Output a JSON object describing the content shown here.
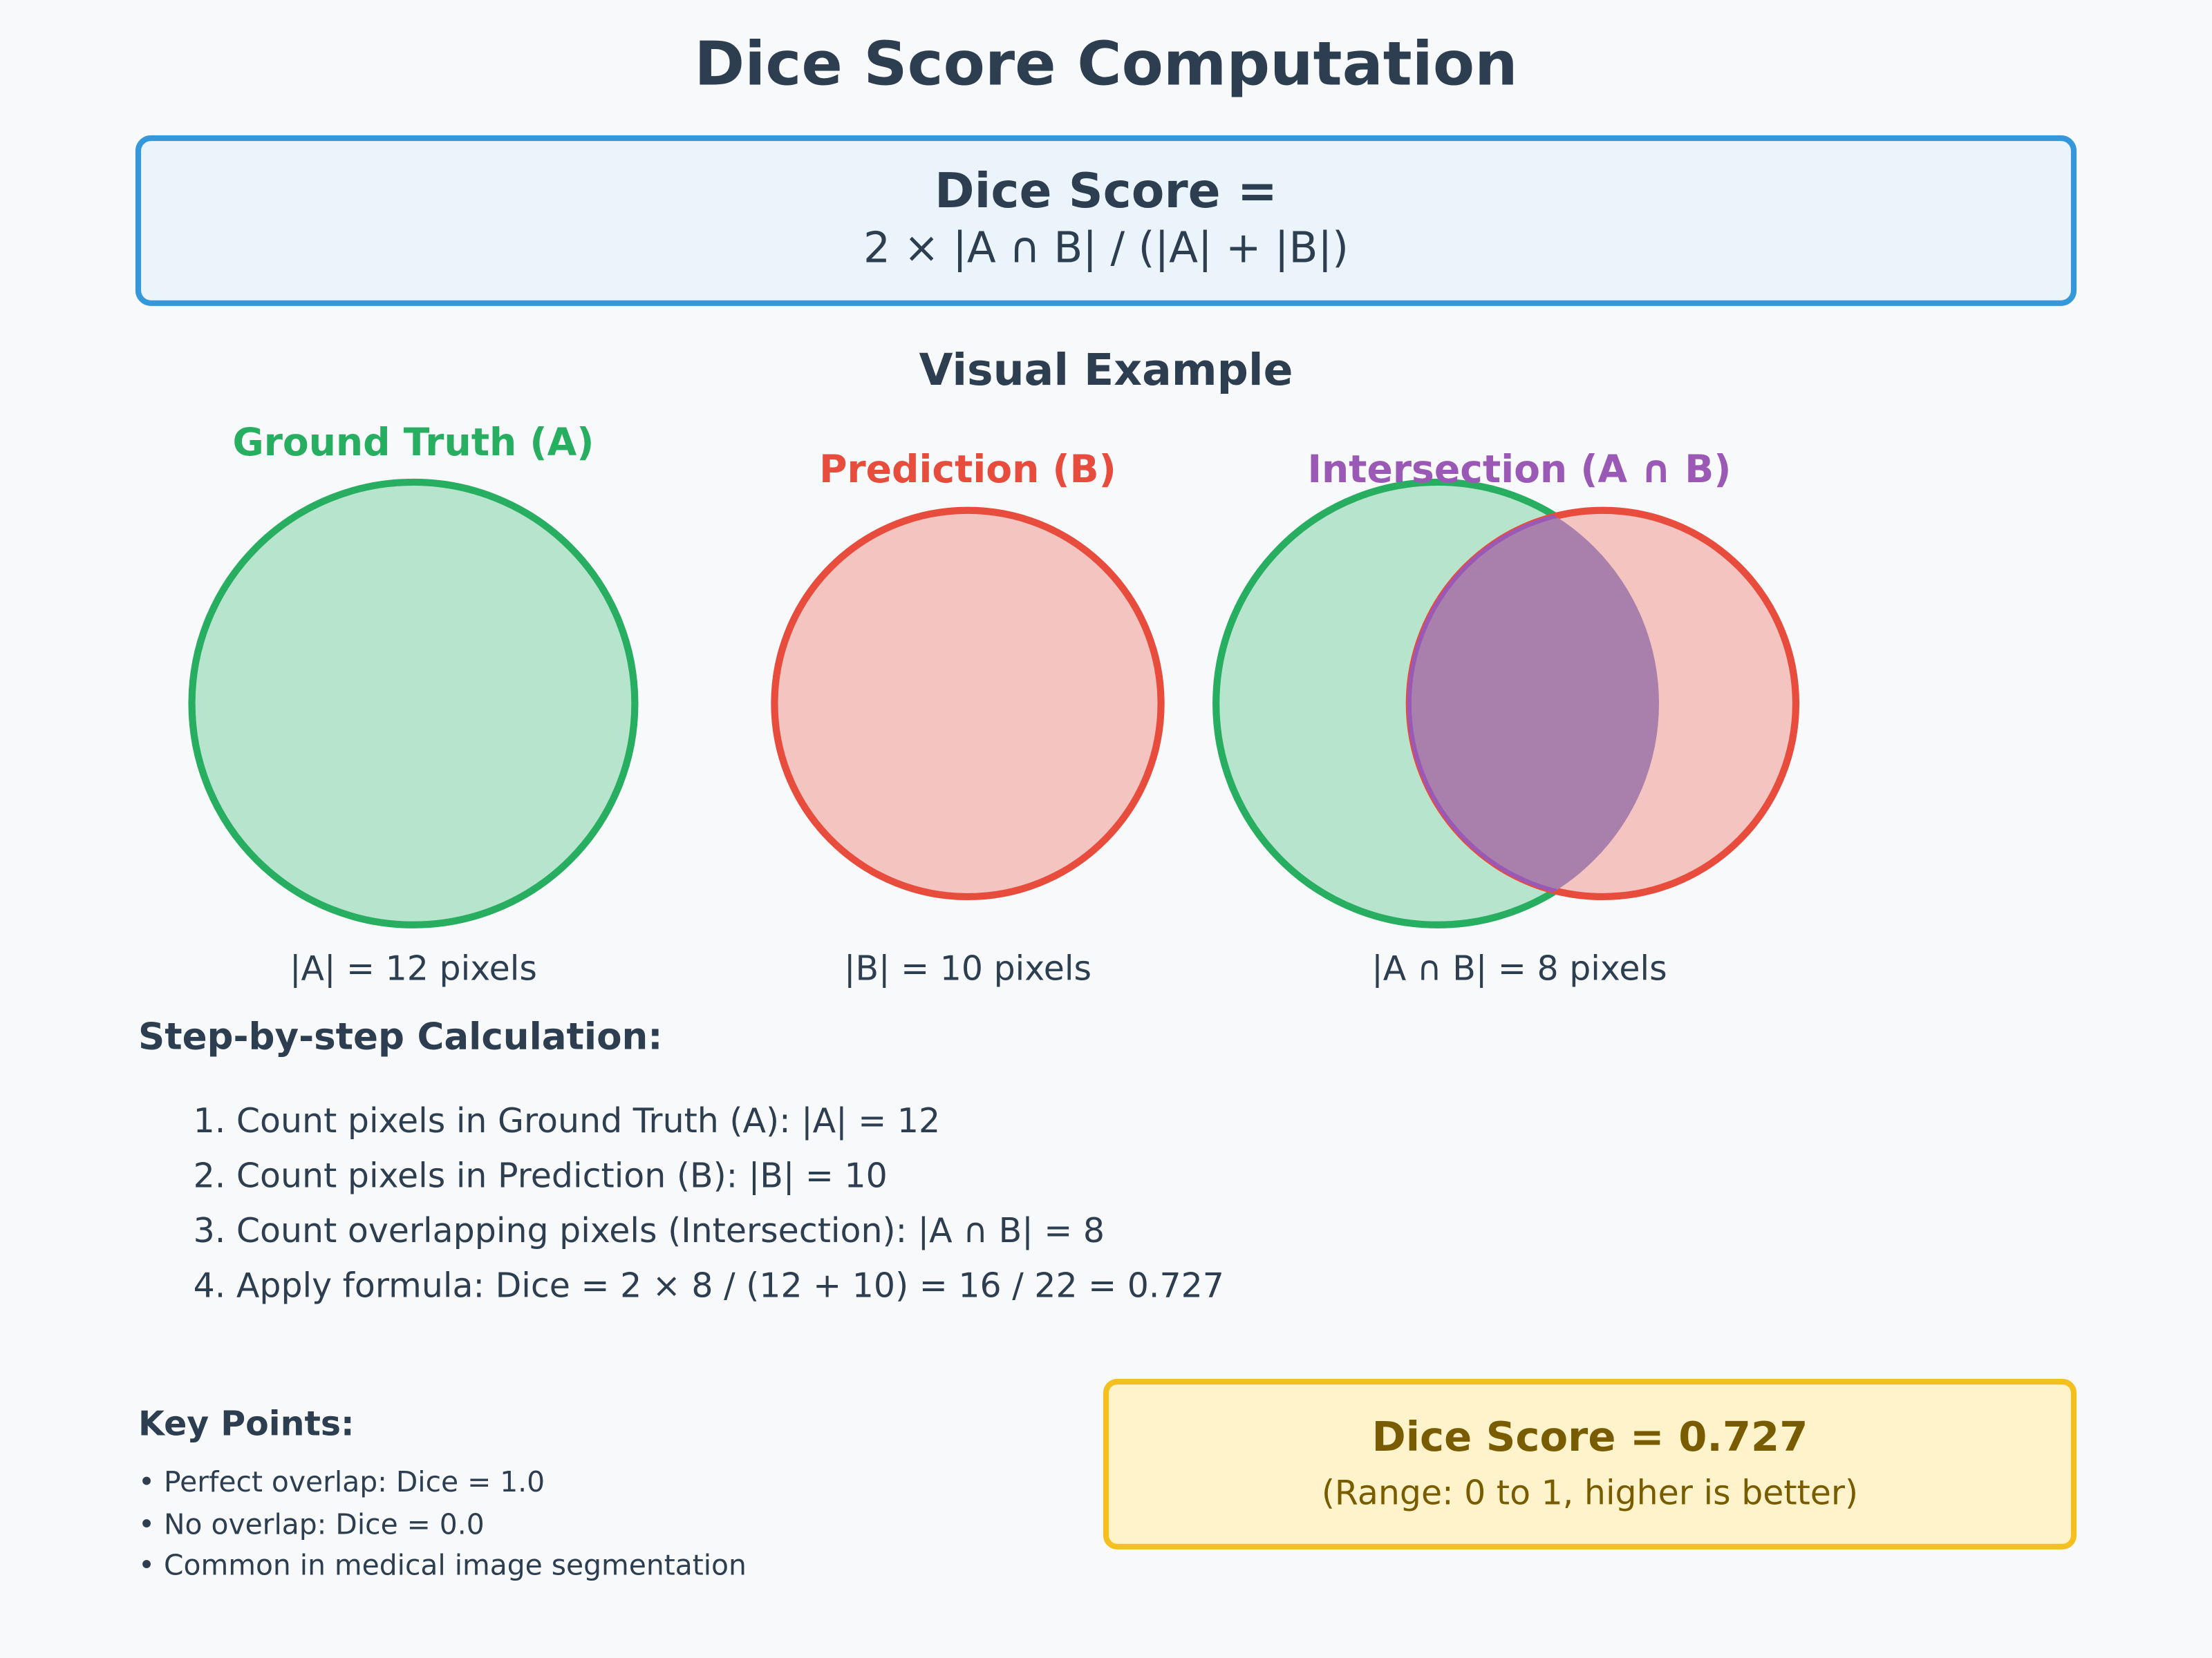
{
  "title": "Dice Score Computation",
  "formula": {
    "heading": "Dice Score =",
    "expression": "2 × |A ∩ B| / (|A| + |B|)"
  },
  "visual_example": {
    "heading": "Visual Example",
    "ground_truth": {
      "label": "Ground Truth (A)",
      "caption": "|A| = 12 pixels"
    },
    "prediction": {
      "label": "Prediction (B)",
      "caption": "|B| = 10 pixels"
    },
    "intersection": {
      "label": "Intersection (A ∩ B)",
      "caption": "|A ∩ B| = 8 pixels"
    }
  },
  "calculation": {
    "heading": "Step-by-step Calculation:",
    "steps": [
      "1. Count pixels in Ground Truth (A): |A| = 12",
      "2. Count pixels in Prediction (B): |B| = 10",
      "3. Count overlapping pixels (Intersection): |A ∩ B| = 8",
      "4. Apply formula: Dice = 2 × 8 / (12 + 10) = 16 / 22 = 0.727"
    ]
  },
  "key_points": {
    "heading": "Key Points:",
    "items": [
      "• Perfect overlap: Dice = 1.0",
      "• No overlap: Dice = 0.0",
      "• Common in medical image segmentation"
    ]
  },
  "result": {
    "score": "Dice Score = 0.727",
    "range": "(Range: 0 to 1, higher is better)"
  },
  "colors": {
    "text": "#2c3e50",
    "ground_truth": "#27ae60",
    "ground_truth_fill": "#b7e4cc",
    "prediction": "#e74c3c",
    "prediction_fill": "#f3c4c0",
    "intersection": "#9b59b6",
    "intersection_fill": "#a97fab",
    "formula_border": "#3498db",
    "formula_fill": "#eaf4fa",
    "result_border": "#f4c020",
    "result_fill": "#fff3cc",
    "result_text": "#7a5c00"
  }
}
